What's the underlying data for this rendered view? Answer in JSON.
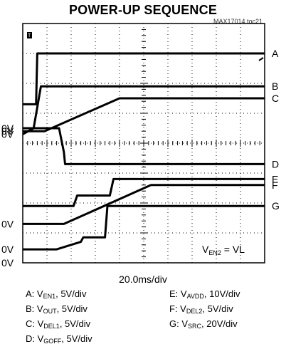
{
  "title": "POWER-UP SEQUENCE",
  "figure_ref": "MAX17014 toc21",
  "trigger_marker": "T",
  "timebase": "20.0ms/div",
  "annotation": {
    "pre": "V",
    "sub": "EN2",
    "post": " = VL"
  },
  "zero_labels": [
    "0V",
    "0V",
    "0V",
    "0V",
    "0V",
    "0V"
  ],
  "legend": [
    {
      "pre": "A: V",
      "sub": "EN1",
      "post": ", 5V/div"
    },
    {
      "pre": "B: V",
      "sub": "OUT",
      "post": ", 5V/div"
    },
    {
      "pre": "C: V",
      "sub": "DEL1",
      "post": ", 5V/div"
    },
    {
      "pre": "D: V",
      "sub": "GOFF",
      "post": ", 5V/div"
    },
    {
      "pre": "E: V",
      "sub": "AVDD",
      "post": ", 10V/div"
    },
    {
      "pre": "F: V",
      "sub": "DEL2",
      "post": ", 5V/div"
    },
    {
      "pre": "G: V",
      "sub": "SRC",
      "post": ", 20V/div"
    }
  ],
  "chart_data": {
    "type": "line",
    "title": "POWER-UP SEQUENCE",
    "xlabel": "20.0ms/div",
    "x_divisions": 10,
    "y_divisions": 8,
    "xlim": [
      0,
      10
    ],
    "ylim": [
      0,
      8
    ],
    "grid": true,
    "series": [
      {
        "name": "A",
        "x": [
          0,
          0.55,
          0.6,
          10
        ],
        "y": [
          5.3,
          5.3,
          7.0,
          7.0
        ]
      },
      {
        "name": "B",
        "x": [
          0,
          0.45,
          0.75,
          10
        ],
        "y": [
          4.3,
          4.5,
          5.9,
          5.9
        ]
      },
      {
        "name": "C",
        "x": [
          0,
          0.9,
          4.0,
          10
        ],
        "y": [
          4.4,
          4.4,
          5.5,
          5.5
        ]
      },
      {
        "name": "D",
        "x": [
          0,
          1.5,
          1.7,
          1.75,
          10
        ],
        "y": [
          4.5,
          4.5,
          3.7,
          3.3,
          3.3
        ]
      },
      {
        "name": "E",
        "x": [
          0,
          2.1,
          2.25,
          3.6,
          3.75,
          10
        ],
        "y": [
          1.9,
          1.9,
          2.25,
          2.25,
          2.8,
          2.8
        ]
      },
      {
        "name": "F",
        "x": [
          0,
          1.7,
          5.3,
          10
        ],
        "y": [
          1.3,
          1.3,
          2.6,
          2.6
        ]
      },
      {
        "name": "G",
        "x": [
          0,
          1.4,
          2.4,
          2.5,
          3.4,
          3.5,
          10
        ],
        "y": [
          0.45,
          0.45,
          0.7,
          0.85,
          0.85,
          1.9,
          1.9
        ]
      }
    ]
  }
}
